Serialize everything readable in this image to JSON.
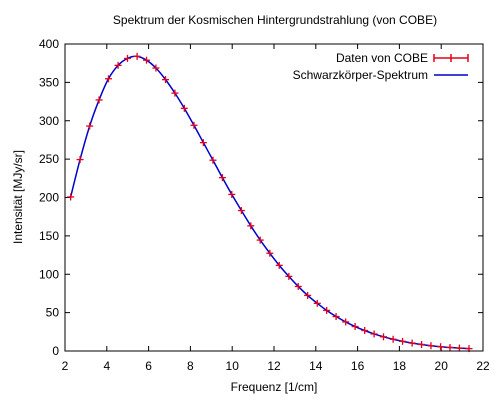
{
  "chart_data": {
    "type": "scatter",
    "title": "Spektrum der Kosmischen Hintergrundstrahlung (von COBE)",
    "xlabel": "Frequenz [1/cm]",
    "ylabel": "Intensität [MJy/sr]",
    "xlim": [
      2,
      22
    ],
    "ylim": [
      0,
      400
    ],
    "x_ticks": [
      "2",
      "4",
      "6",
      "8",
      "10",
      "12",
      "14",
      "16",
      "18",
      "20",
      "22"
    ],
    "y_ticks": [
      "0",
      "50",
      "100",
      "150",
      "200",
      "250",
      "300",
      "350",
      "400"
    ],
    "legend_position": "top-right",
    "grid": false,
    "series": [
      {
        "name": "Daten von COBE",
        "kind": "points-with-errorbars",
        "color": "#e3001b",
        "x": [
          2.27,
          2.72,
          3.18,
          3.63,
          4.08,
          4.54,
          4.99,
          5.45,
          5.9,
          6.35,
          6.81,
          7.26,
          7.71,
          8.17,
          8.62,
          9.08,
          9.53,
          9.98,
          10.44,
          10.89,
          11.34,
          11.8,
          12.25,
          12.71,
          13.16,
          13.61,
          14.07,
          14.52,
          14.97,
          15.43,
          15.88,
          16.34,
          16.79,
          17.24,
          17.7,
          18.15,
          18.61,
          19.06,
          19.51,
          19.97,
          20.42,
          20.87,
          21.33
        ],
        "y": [
          200.7,
          249.4,
          293.1,
          327.1,
          354.7,
          372.2,
          381.2,
          383.9,
          378.9,
          368.7,
          353.6,
          336.0,
          316.2,
          294.1,
          271.5,
          248.6,
          225.9,
          204.0,
          183.0,
          163.1,
          144.5,
          127.4,
          111.6,
          97.2,
          84.1,
          72.4,
          62.1,
          52.9,
          44.9,
          37.9,
          31.9,
          26.7,
          22.2,
          18.5,
          15.3,
          12.6,
          10.3,
          8.5,
          6.9,
          5.6,
          4.6,
          3.8,
          3.1
        ]
      },
      {
        "name": "Schwarzkörper-Spektrum",
        "kind": "line",
        "color": "#0000cc"
      }
    ]
  }
}
